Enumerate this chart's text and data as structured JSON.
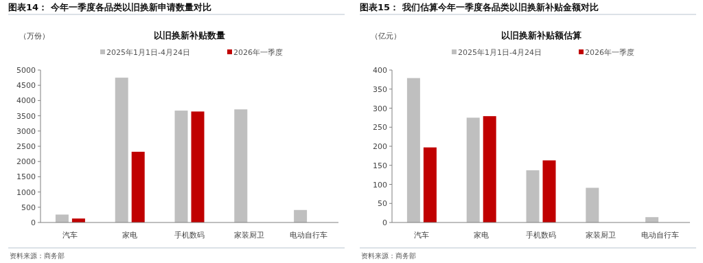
{
  "chart_data": [
    {
      "type": "bar",
      "title": "图表14：  今年一季度各品类以旧换新申请数量对比",
      "subtitle": "以旧换新补贴数量",
      "ylabel": "（万份）",
      "categories": [
        "汽车",
        "家电",
        "手机数码",
        "家装厨卫",
        "电动自行车"
      ],
      "series": [
        {
          "name": "2025年1月1日-4月24日",
          "color": "#bfbfbf",
          "values": [
            260,
            4750,
            3670,
            3710,
            410
          ]
        },
        {
          "name": "2026年一季度",
          "color": "#c00000",
          "values": [
            130,
            2320,
            3640,
            null,
            null
          ]
        }
      ],
      "ylim": [
        0,
        5000
      ],
      "yticks": [
        0,
        500,
        1000,
        1500,
        2000,
        2500,
        3000,
        3500,
        4000,
        4500,
        5000
      ],
      "legend": "top",
      "grid": false,
      "annotations": [
        "资料来源：商务部"
      ]
    },
    {
      "type": "bar",
      "title": "图表15：  我们估算今年一季度各品类以旧换新补贴金额对比",
      "subtitle": "以旧换新补贴额估算",
      "ylabel": "（亿元）",
      "categories": [
        "汽车",
        "家电",
        "手机数码",
        "家装厨卫",
        "电动自行车"
      ],
      "series": [
        {
          "name": "2025年1月1日-4月24日",
          "color": "#bfbfbf",
          "values": [
            379,
            275,
            137,
            91,
            14
          ]
        },
        {
          "name": "2026年一季度",
          "color": "#c00000",
          "values": [
            197,
            279,
            163,
            null,
            null
          ]
        }
      ],
      "ylim": [
        0,
        400
      ],
      "yticks": [
        0,
        50,
        100,
        150,
        200,
        250,
        300,
        350,
        400
      ],
      "legend": "top",
      "grid": false,
      "annotations": [
        "资料来源：商务部"
      ]
    }
  ]
}
